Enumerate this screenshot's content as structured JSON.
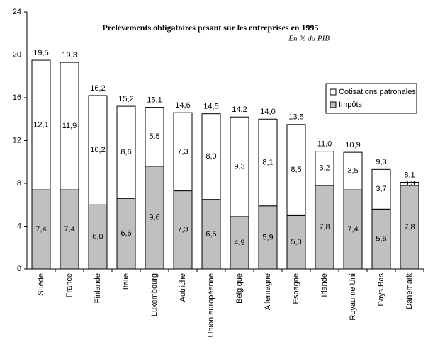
{
  "chart_data": {
    "type": "stacked_bar",
    "title": "Prélèvements obligatoires pesant sur les entreprises en 1995",
    "subtitle": "En % du PIB",
    "categories": [
      "Suède",
      "France",
      "Finlande",
      "Italie",
      "Luxembourg",
      "Autriche",
      "Union européenne",
      "Belgique",
      "Allemagne",
      "Espagne",
      "Irlande",
      "Royaume Uni",
      "Pays Bas",
      "Danemark"
    ],
    "series": [
      {
        "name": "Impôts",
        "color": "#c0c0c0",
        "values": [
          7.4,
          7.4,
          6.0,
          6.6,
          9.6,
          7.3,
          6.5,
          4.9,
          5.9,
          5.0,
          7.8,
          7.4,
          5.6,
          7.8
        ],
        "value_labels": [
          "7,4",
          "7,4",
          "6,0",
          "6,6",
          "9,6",
          "7,3",
          "6,5",
          "4,9",
          "5,9",
          "5,0",
          "7,8",
          "7,4",
          "5,6",
          "7,8"
        ]
      },
      {
        "name": "Cotisations patronales",
        "color": "#ffffff",
        "values": [
          12.1,
          11.9,
          10.2,
          8.6,
          5.5,
          7.3,
          8.0,
          9.3,
          8.1,
          8.5,
          3.2,
          3.5,
          3.7,
          0.3
        ],
        "value_labels": [
          "12,1",
          "11,9",
          "10,2",
          "8,6",
          "5,5",
          "7,3",
          "8,0",
          "9,3",
          "8,1",
          "8,5",
          "3,2",
          "3,5",
          "3,7",
          "0,3"
        ]
      }
    ],
    "total_labels": [
      "19,5",
      "19,3",
      "16,2",
      "15,2",
      "15,1",
      "14,6",
      "14,5",
      "14,2",
      "14,0",
      "13,5",
      "11,0",
      "10,9",
      "9,3",
      "8,1"
    ],
    "ylim": [
      0,
      24
    ],
    "yticks": [
      0,
      4,
      8,
      12,
      16,
      20,
      24
    ],
    "grid": false
  }
}
